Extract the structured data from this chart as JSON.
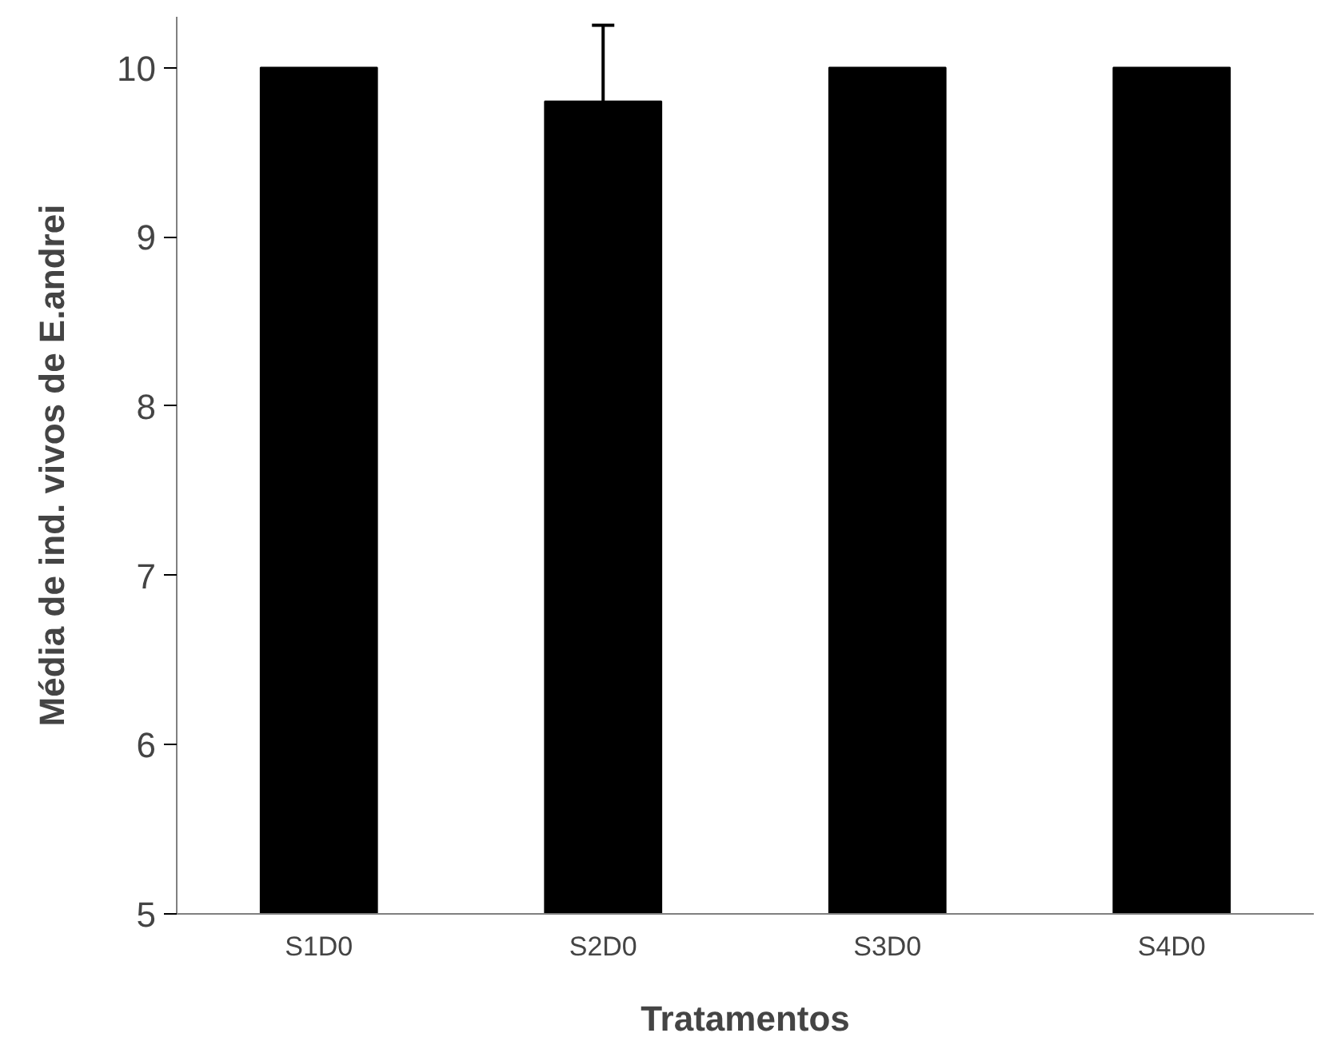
{
  "chart_data": {
    "type": "bar",
    "xlabel": "Tratamentos",
    "ylabel": "Média de ind. vivos de E.andrei",
    "categories": [
      "S1D0",
      "S2D0",
      "S3D0",
      "S4D0"
    ],
    "values": [
      10,
      9.8,
      10,
      10
    ],
    "errors": [
      null,
      0.45,
      null,
      null
    ],
    "color": "#000000",
    "ylim": [
      5,
      10.3
    ],
    "yticks": [
      5,
      6,
      7,
      8,
      9,
      10
    ],
    "grid": false
  }
}
